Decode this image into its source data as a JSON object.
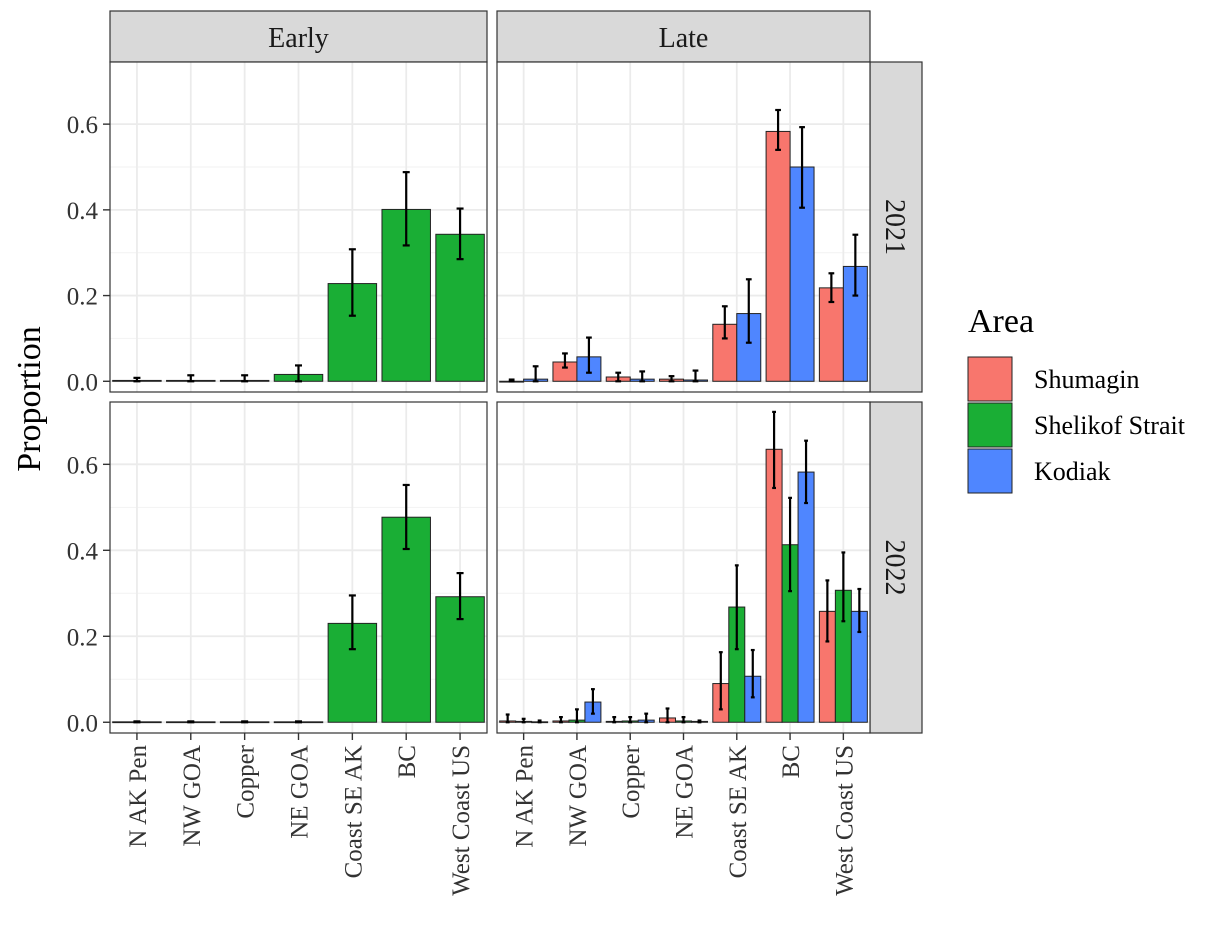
{
  "chart_data": {
    "type": "bar",
    "subtype": "faceted grouped bar with error bars",
    "ylabel": "Proportion",
    "xlabel": "",
    "ylim": [
      -0.025,
      0.745
    ],
    "yticks": [
      0.0,
      0.2,
      0.4,
      0.6
    ],
    "ytick_labels": [
      "0.0",
      "0.2",
      "0.4",
      "0.6"
    ],
    "grid": true,
    "facet_columns": [
      "Early",
      "Late"
    ],
    "facet_rows": [
      "2021",
      "2022"
    ],
    "categories": [
      "N AK Pen",
      "NW GOA",
      "Copper",
      "NE GOA",
      "Coast SE AK",
      "BC",
      "West Coast US"
    ],
    "legend": {
      "title": "Area",
      "position": "right",
      "entries": [
        {
          "name": "Shumagin",
          "color": "#F8766D"
        },
        {
          "name": "Shelikof Strait",
          "color": "#1AAE35"
        },
        {
          "name": "Kodiak",
          "color": "#4F86FF"
        }
      ]
    },
    "panels": [
      {
        "col": "Early",
        "row": "2021",
        "series": [
          {
            "name": "Shelikof Strait",
            "values": [
              0.002,
              0.002,
              0.002,
              0.016,
              0.228,
              0.401,
              0.343
            ],
            "lower": [
              0.0,
              0.0,
              0.0,
              0.0,
              0.153,
              0.317,
              0.285
            ],
            "upper": [
              0.008,
              0.014,
              0.014,
              0.037,
              0.308,
              0.488,
              0.403
            ]
          }
        ]
      },
      {
        "col": "Late",
        "row": "2021",
        "series": [
          {
            "name": "Shumagin",
            "values": [
              0.0,
              0.045,
              0.01,
              0.005,
              0.133,
              0.583,
              0.218
            ],
            "lower": [
              0.0,
              0.032,
              0.0,
              0.0,
              0.1,
              0.54,
              0.185
            ],
            "upper": [
              0.004,
              0.065,
              0.02,
              0.012,
              0.175,
              0.633,
              0.252
            ]
          },
          {
            "name": "Kodiak",
            "values": [
              0.005,
              0.057,
              0.005,
              0.003,
              0.158,
              0.5,
              0.268
            ],
            "lower": [
              0.0,
              0.02,
              0.0,
              0.0,
              0.09,
              0.405,
              0.2
            ],
            "upper": [
              0.035,
              0.102,
              0.023,
              0.025,
              0.238,
              0.593,
              0.342
            ]
          }
        ]
      },
      {
        "col": "Early",
        "row": "2022",
        "series": [
          {
            "name": "Shelikof Strait",
            "values": [
              0.001,
              0.001,
              0.001,
              0.001,
              0.23,
              0.477,
              0.292
            ],
            "lower": [
              0.0,
              0.0,
              0.0,
              0.0,
              0.17,
              0.403,
              0.24
            ],
            "upper": [
              0.002,
              0.002,
              0.002,
              0.002,
              0.295,
              0.552,
              0.347
            ]
          }
        ]
      },
      {
        "col": "Late",
        "row": "2022",
        "series": [
          {
            "name": "Shumagin",
            "values": [
              0.003,
              0.003,
              0.002,
              0.01,
              0.09,
              0.635,
              0.258
            ],
            "lower": [
              0.0,
              0.0,
              0.0,
              0.0,
              0.03,
              0.545,
              0.188
            ],
            "upper": [
              0.018,
              0.012,
              0.012,
              0.032,
              0.163,
              0.722,
              0.33
            ]
          },
          {
            "name": "Shelikof Strait",
            "values": [
              0.002,
              0.005,
              0.003,
              0.003,
              0.268,
              0.413,
              0.307
            ],
            "lower": [
              0.0,
              0.0,
              0.0,
              0.0,
              0.17,
              0.305,
              0.235
            ],
            "upper": [
              0.008,
              0.03,
              0.012,
              0.012,
              0.365,
              0.522,
              0.395
            ]
          },
          {
            "name": "Kodiak",
            "values": [
              0.001,
              0.047,
              0.005,
              0.002,
              0.107,
              0.582,
              0.258
            ],
            "lower": [
              0.0,
              0.02,
              0.0,
              0.0,
              0.058,
              0.51,
              0.21
            ],
            "upper": [
              0.004,
              0.077,
              0.02,
              0.004,
              0.168,
              0.655,
              0.31
            ]
          }
        ]
      }
    ]
  }
}
